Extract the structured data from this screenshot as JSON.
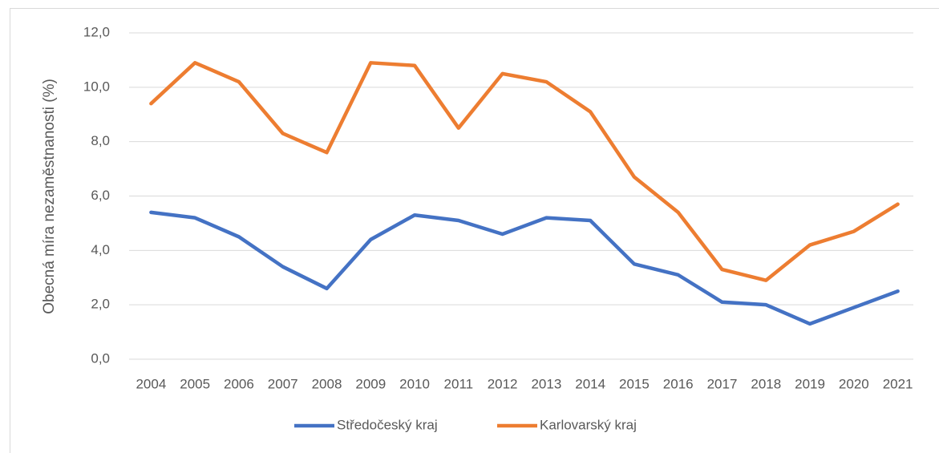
{
  "chart_data": {
    "type": "line",
    "y_label": "Obecná míra nezaměstnanosti (%)",
    "categories": [
      "2004",
      "2005",
      "2006",
      "2007",
      "2008",
      "2009",
      "2010",
      "2011",
      "2012",
      "2013",
      "2014",
      "2015",
      "2016",
      "2017",
      "2018",
      "2019",
      "2020",
      "2021"
    ],
    "series": [
      {
        "name": "Středočeský kraj",
        "color": "#4472c4",
        "values": [
          5.4,
          5.2,
          4.5,
          3.4,
          2.6,
          4.4,
          5.3,
          5.1,
          4.6,
          5.2,
          5.1,
          3.5,
          3.1,
          2.1,
          2.0,
          1.3,
          1.9,
          2.5
        ]
      },
      {
        "name": "Karlovarský kraj",
        "color": "#ed7d31",
        "values": [
          9.4,
          10.9,
          10.2,
          8.3,
          7.6,
          10.9,
          10.8,
          8.5,
          10.5,
          10.2,
          9.1,
          6.7,
          5.4,
          3.3,
          2.9,
          4.2,
          4.7,
          5.7
        ]
      }
    ],
    "ylim": [
      0,
      12
    ],
    "yticks": [
      {
        "value": 0,
        "label": "0,0"
      },
      {
        "value": 2,
        "label": "2,0"
      },
      {
        "value": 4,
        "label": "4,0"
      },
      {
        "value": 6,
        "label": "6,0"
      },
      {
        "value": 8,
        "label": "8,0"
      },
      {
        "value": 10,
        "label": "10,0"
      },
      {
        "value": 12,
        "label": "12,0"
      }
    ],
    "grid": true,
    "legend": "bottom"
  }
}
